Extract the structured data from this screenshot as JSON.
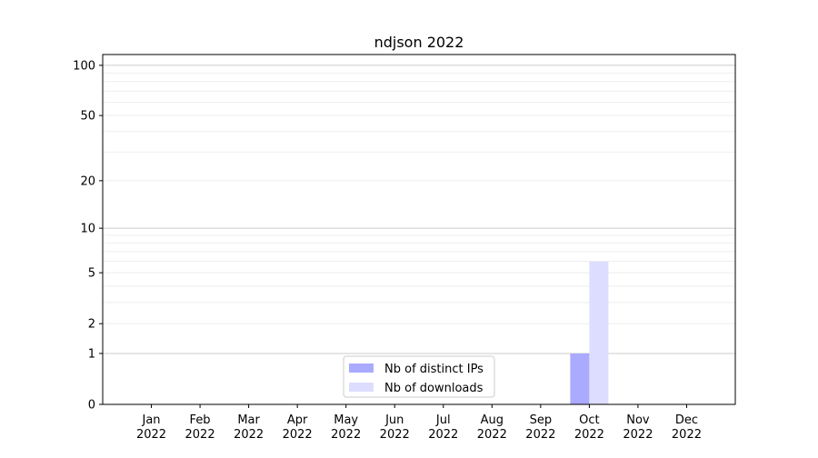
{
  "chart_data": {
    "type": "bar",
    "title": "ndjson 2022",
    "xlabel": "",
    "ylabel": "",
    "categories": [
      "Jan\n2022",
      "Feb\n2022",
      "Mar\n2022",
      "Apr\n2022",
      "May\n2022",
      "Jun\n2022",
      "Jul\n2022",
      "Aug\n2022",
      "Sep\n2022",
      "Oct\n2022",
      "Nov\n2022",
      "Dec\n2022"
    ],
    "y_scale": "log(y+1)",
    "ylim": [
      0,
      116
    ],
    "y_ticks": [
      0,
      1,
      2,
      5,
      10,
      20,
      50,
      100
    ],
    "grid": true,
    "legend_placement": "lower-center",
    "series": [
      {
        "name": "Nb of distinct IPs",
        "color": "#aaaaff",
        "values": [
          0,
          0,
          0,
          0,
          0,
          0,
          0,
          0,
          0,
          1,
          0,
          0
        ]
      },
      {
        "name": "Nb of downloads",
        "color": "#ddddff",
        "values": [
          0,
          0,
          0,
          0,
          0,
          0,
          0,
          0,
          0,
          6,
          0,
          0
        ]
      }
    ]
  }
}
